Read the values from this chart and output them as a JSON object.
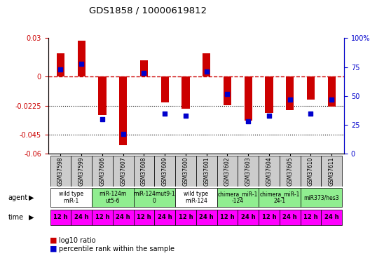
{
  "title": "GDS1858 / 10000619812",
  "samples": [
    "GSM37598",
    "GSM37599",
    "GSM37606",
    "GSM37607",
    "GSM37608",
    "GSM37609",
    "GSM37600",
    "GSM37601",
    "GSM37602",
    "GSM37603",
    "GSM37604",
    "GSM37605",
    "GSM37610",
    "GSM37611"
  ],
  "log10_ratio": [
    0.018,
    0.028,
    -0.03,
    -0.053,
    0.013,
    -0.02,
    -0.025,
    0.018,
    -0.022,
    -0.034,
    -0.028,
    -0.026,
    -0.018,
    -0.023
  ],
  "percentile_rank": [
    73,
    78,
    30,
    17,
    70,
    35,
    33,
    71,
    52,
    28,
    33,
    47,
    35,
    47
  ],
  "ylim_left": [
    -0.06,
    0.03
  ],
  "ylim_right": [
    0,
    100
  ],
  "yticks_left": [
    0.03,
    0,
    -0.0225,
    -0.045,
    -0.06
  ],
  "yticks_left_labels": [
    "0.03",
    "0",
    "-0.0225",
    "-0.045",
    "-0.06"
  ],
  "yticks_right": [
    100,
    75,
    50,
    25,
    0
  ],
  "yticks_right_labels": [
    "100%",
    "75",
    "50",
    "25",
    "0"
  ],
  "agent_groups": [
    {
      "label": "wild type\nmiR-1",
      "start": 0,
      "end": 2,
      "color": "#ffffff"
    },
    {
      "label": "miR-124m\nut5-6",
      "start": 2,
      "end": 4,
      "color": "#90ee90"
    },
    {
      "label": "miR-124mut9-1\n0",
      "start": 4,
      "end": 6,
      "color": "#90ee90"
    },
    {
      "label": "wild type\nmiR-124",
      "start": 6,
      "end": 8,
      "color": "#ffffff"
    },
    {
      "label": "chimera_miR-1\n-124",
      "start": 8,
      "end": 10,
      "color": "#90ee90"
    },
    {
      "label": "chimera_miR-1\n24-1",
      "start": 10,
      "end": 12,
      "color": "#90ee90"
    },
    {
      "label": "miR373/hes3",
      "start": 12,
      "end": 14,
      "color": "#90ee90"
    }
  ],
  "bar_color": "#cc0000",
  "dot_color": "#0000cc",
  "hline_color": "#cc0000",
  "dotline_color": "#000000",
  "time_color": "#ff00ff",
  "sample_bg": "#cccccc"
}
